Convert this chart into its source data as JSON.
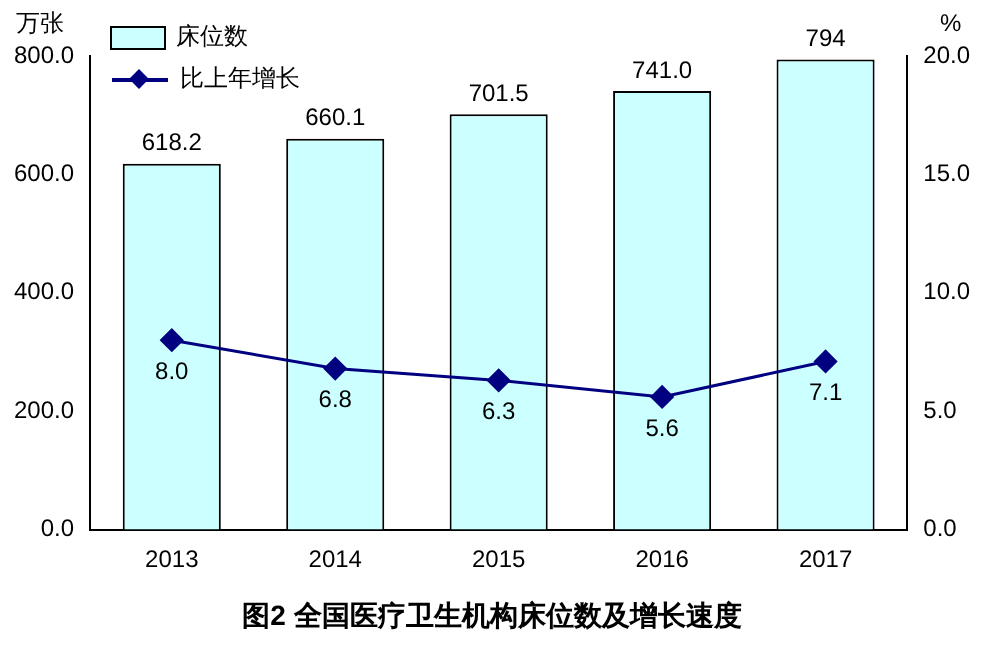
{
  "chart_data": {
    "type": "bar",
    "title": "图2 全国医疗卫生机构床位数及增长速度",
    "ylabel": "万张",
    "y2label": "%",
    "categories": [
      "2013",
      "2014",
      "2015",
      "2016",
      "2017"
    ],
    "series": [
      {
        "name": "床位数",
        "color": "#ccffff",
        "values": [
          618.2,
          660.1,
          701.5,
          741.0,
          794
        ],
        "value_labels": [
          "618.2",
          "660.1",
          "701.5",
          "741.0",
          "794"
        ]
      },
      {
        "name": "比上年增长",
        "type": "line",
        "axis": "y2",
        "color": "#000080",
        "marker": "diamond",
        "values": [
          8.0,
          6.8,
          6.3,
          5.6,
          7.1
        ],
        "value_labels": [
          "8.0",
          "6.8",
          "6.3",
          "5.6",
          "7.1"
        ]
      }
    ],
    "ylim": [
      0,
      800
    ],
    "yticks": [
      {
        "value": 0,
        "label": "0.0"
      },
      {
        "value": 200,
        "label": "200.0"
      },
      {
        "value": 400,
        "label": "400.0"
      },
      {
        "value": 600,
        "label": "600.0"
      },
      {
        "value": 800,
        "label": "800.0"
      }
    ],
    "y2lim": [
      0,
      20
    ],
    "y2ticks": [
      {
        "value": 0,
        "label": "0.0"
      },
      {
        "value": 5,
        "label": "5.0"
      },
      {
        "value": 10,
        "label": "10.0"
      },
      {
        "value": 15,
        "label": "15.0"
      },
      {
        "value": 20,
        "label": "20.0"
      }
    ],
    "legend": "top left",
    "grid": false
  }
}
